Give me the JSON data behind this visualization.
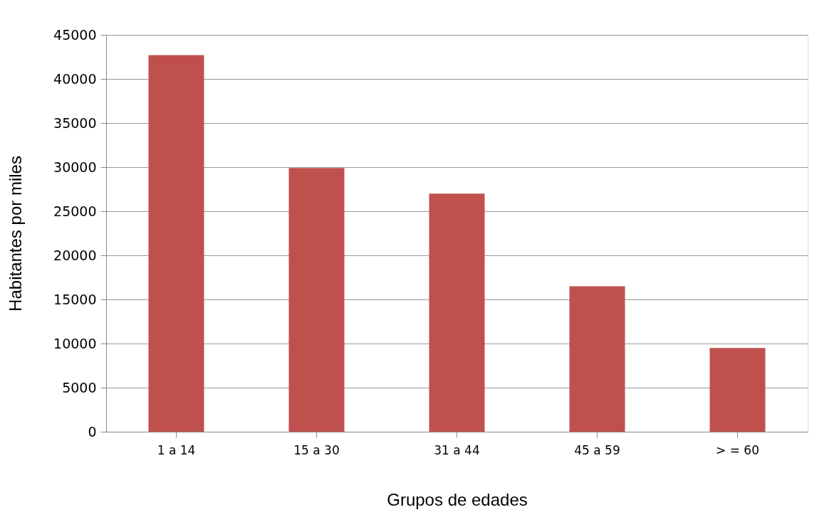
{
  "chart_data": {
    "type": "bar",
    "xlabel": "Grupos de edades",
    "ylabel": "Habitantes por miles",
    "categories": [
      "1 a 14",
      "15 a 30",
      "31 a 44",
      "45 a 59",
      "> = 60"
    ],
    "values": [
      42700,
      29900,
      27000,
      16500,
      9500
    ],
    "color": "#c0504d",
    "ylim": [
      0,
      45000
    ],
    "yticks": [
      0,
      5000,
      10000,
      15000,
      20000,
      25000,
      30000,
      35000,
      40000,
      45000
    ],
    "grid": "y"
  }
}
